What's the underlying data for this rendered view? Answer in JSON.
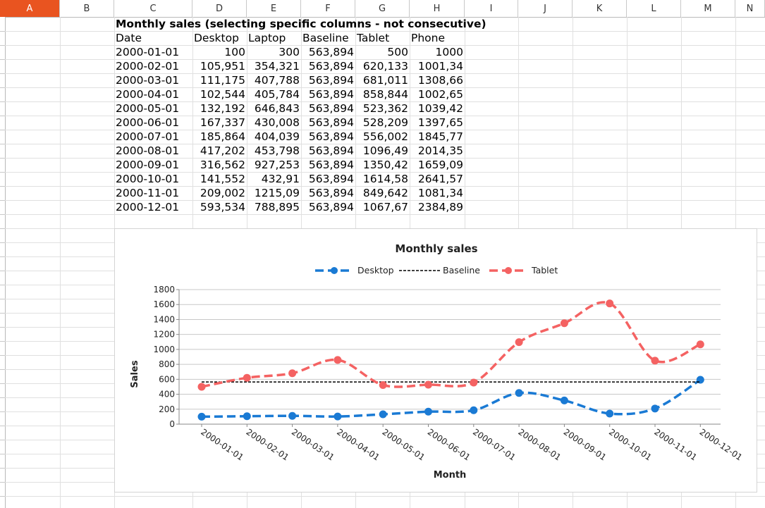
{
  "columns": [
    "A",
    "B",
    "C",
    "D",
    "E",
    "F",
    "G",
    "H",
    "I",
    "J",
    "K",
    "L",
    "M",
    "N"
  ],
  "selected_column": "A",
  "sheet": {
    "title": "Monthly sales (selecting specific columns - not consecutive)",
    "headers": [
      "Date",
      "Desktop",
      "Laptop",
      "Baseline",
      "Tablet",
      "Phone"
    ],
    "rows": [
      [
        "2000-01-01",
        "100",
        "300",
        "563,894",
        "500",
        "1000"
      ],
      [
        "2000-02-01",
        "105,951",
        "354,321",
        "563,894",
        "620,133",
        "1001,34"
      ],
      [
        "2000-03-01",
        "111,175",
        "407,788",
        "563,894",
        "681,011",
        "1308,66"
      ],
      [
        "2000-04-01",
        "102,544",
        "405,784",
        "563,894",
        "858,844",
        "1002,65"
      ],
      [
        "2000-05-01",
        "132,192",
        "646,843",
        "563,894",
        "523,362",
        "1039,42"
      ],
      [
        "2000-06-01",
        "167,337",
        "430,008",
        "563,894",
        "528,209",
        "1397,65"
      ],
      [
        "2000-07-01",
        "185,864",
        "404,039",
        "563,894",
        "556,002",
        "1845,77"
      ],
      [
        "2000-08-01",
        "417,202",
        "453,798",
        "563,894",
        "1096,49",
        "2014,35"
      ],
      [
        "2000-09-01",
        "316,562",
        "927,253",
        "563,894",
        "1350,42",
        "1659,09"
      ],
      [
        "2000-10-01",
        "141,552",
        "432,91",
        "563,894",
        "1614,58",
        "2641,57"
      ],
      [
        "2000-11-01",
        "209,002",
        "1215,09",
        "563,894",
        "849,642",
        "1081,34"
      ],
      [
        "2000-12-01",
        "593,534",
        "788,895",
        "563,894",
        "1067,67",
        "2384,89"
      ]
    ]
  },
  "chart_data": {
    "type": "line",
    "title": "Monthly sales",
    "xlabel": "Month",
    "ylabel": "Sales",
    "ylim": [
      0,
      1800
    ],
    "yticks": [
      0,
      200,
      400,
      600,
      800,
      1000,
      1200,
      1400,
      1600,
      1800
    ],
    "grid": true,
    "legend_position": "top",
    "categories": [
      "2000-01-01",
      "2000-02-01",
      "2000-03-01",
      "2000-04-01",
      "2000-05-01",
      "2000-06-01",
      "2000-07-01",
      "2000-08-01",
      "2000-09-01",
      "2000-10-01",
      "2000-11-01",
      "2000-12-01"
    ],
    "series": [
      {
        "name": "Desktop",
        "color": "#1a7ad4",
        "style": "dashed-markers",
        "values": [
          100,
          105.951,
          111.175,
          102.544,
          132.192,
          167.337,
          185.864,
          417.202,
          316.562,
          141.552,
          209.002,
          593.534
        ]
      },
      {
        "name": "Baseline",
        "color": "#000000",
        "style": "dashed",
        "values": [
          563.894,
          563.894,
          563.894,
          563.894,
          563.894,
          563.894,
          563.894,
          563.894,
          563.894,
          563.894,
          563.894,
          563.894
        ]
      },
      {
        "name": "Tablet",
        "color": "#f46262",
        "style": "dashed-markers",
        "values": [
          500,
          620.133,
          681.011,
          858.844,
          523.362,
          528.209,
          556.002,
          1096.49,
          1350.42,
          1614.58,
          849.642,
          1067.67
        ]
      }
    ]
  }
}
